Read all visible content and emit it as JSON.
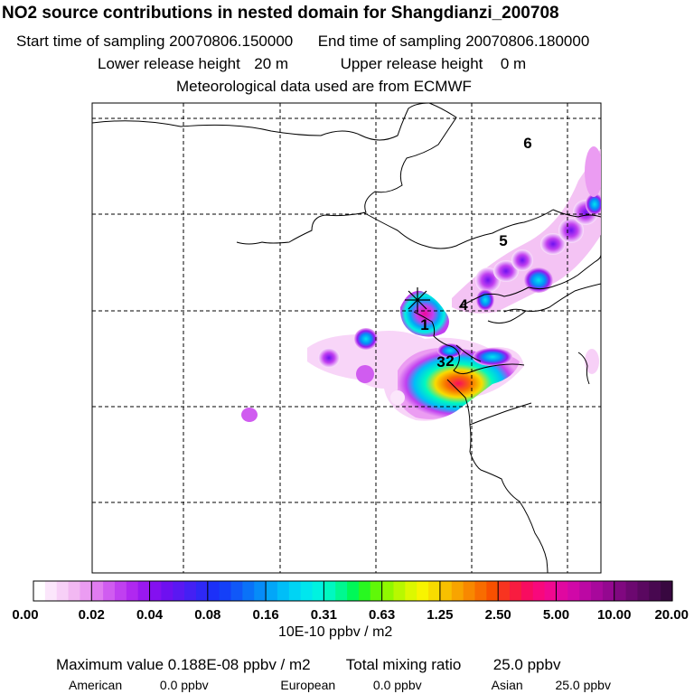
{
  "title": "NO2 source contributions in nested domain for Shangdianzi_200708",
  "sampling": {
    "start_label": "Start time of sampling",
    "start_value": "20070806.150000",
    "end_label": "End time of sampling",
    "end_value": "20070806.180000"
  },
  "release": {
    "lower_label": "Lower release height",
    "lower_value": "20 m",
    "upper_label": "Upper release height",
    "upper_value": "0 m"
  },
  "met_note": "Meteorological data used are from ECMWF",
  "chart_data": {
    "type": "heatmap",
    "title": "NO2 source contributions in nested domain for Shangdianzi_200708",
    "grid": true,
    "source_labels": [
      "1",
      "2",
      "3",
      "4",
      "5",
      "6"
    ],
    "colorbar": {
      "units": "10E-10 ppbv / m2",
      "tick_labels": [
        "0.00",
        "0.02",
        "0.04",
        "0.08",
        "0.16",
        "0.31",
        "0.63",
        "1.25",
        "2.50",
        "5.00",
        "10.00",
        "20.00"
      ],
      "colors": [
        "#ffffff",
        "#fbe6fb",
        "#f7d0f7",
        "#f2b8f2",
        "#eb9cf2",
        "#e07cf0",
        "#d05cf0",
        "#c040f0",
        "#b028f0",
        "#9a18f0",
        "#8410f0",
        "#6e10f0",
        "#5a18f2",
        "#4420f4",
        "#2e28f6",
        "#1c30f8",
        "#1440f8",
        "#1058f8",
        "#0a72f8",
        "#068cf8",
        "#02a6f8",
        "#00bef8",
        "#00d4f4",
        "#00e6ee",
        "#00f2e0",
        "#00f8c0",
        "#00f890",
        "#00f858",
        "#28f820",
        "#60f808",
        "#90f800",
        "#b8f800",
        "#dcf800",
        "#f8f400",
        "#f8dc00",
        "#f8c000",
        "#f8a400",
        "#f88800",
        "#f86c00",
        "#f85000",
        "#f83420",
        "#f81c40",
        "#f80c60",
        "#f8087c",
        "#f00890",
        "#e008a0",
        "#d008a8",
        "#bc08a4",
        "#a8089c",
        "#940890",
        "#800880",
        "#6c0870",
        "#5a0860",
        "#480850",
        "#380840"
      ]
    },
    "plumes": [
      {
        "value": 0.03
      },
      {
        "value": 0.3
      },
      {
        "value": 1.5
      },
      {
        "value": 18.8
      }
    ]
  },
  "footer": {
    "max_label": "Maximum value",
    "max_value": "0.188E-08 ppbv / m2",
    "total_label": "Total mixing ratio",
    "total_value": "25.0 ppbv",
    "american_label": "American",
    "american_value": "0.0 ppbv",
    "european_label": "European",
    "european_value": "0.0 ppbv",
    "asian_label": "Asian",
    "asian_value": "25.0 ppbv"
  }
}
